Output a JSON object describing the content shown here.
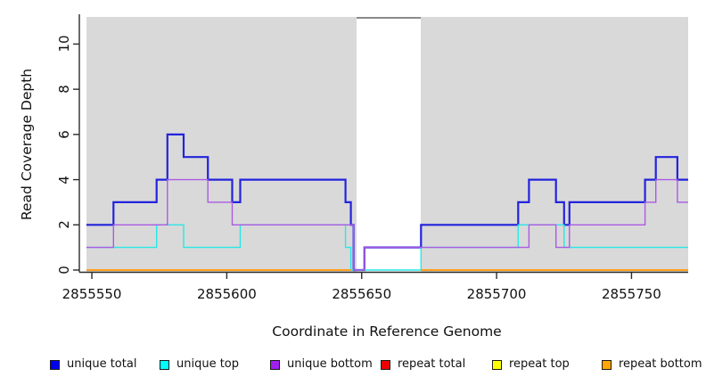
{
  "chart_data": {
    "type": "line",
    "subtype": "step",
    "title": "",
    "xlabel": "Coordinate in Reference Genome",
    "ylabel": "Read Coverage Depth",
    "xlim": [
      2855548,
      2855771
    ],
    "ylim": [
      0,
      11.2
    ],
    "x_ticks": [
      2855550,
      2855600,
      2855650,
      2855700,
      2855750
    ],
    "y_ticks": [
      0,
      2,
      4,
      6,
      8,
      10
    ],
    "grid": false,
    "plot_background": "#d9d9d9",
    "page_background": "#ffffff",
    "axis_color": "#2b2b2b",
    "highlight_region": {
      "x_start": 2855648,
      "x_end": 2855672,
      "fill": "#ffffff",
      "top_border_color": "#8a8a8a"
    },
    "series": [
      {
        "name": "unique total",
        "color": "#2323dd",
        "line_width": 2.2,
        "segments": [
          [
            [
              2855548,
              2
            ],
            [
              2855558,
              3
            ],
            [
              2855574,
              4
            ],
            [
              2855578,
              6
            ],
            [
              2855584,
              5
            ],
            [
              2855593,
              4
            ],
            [
              2855602,
              3
            ],
            [
              2855605,
              4
            ],
            [
              2855644,
              3
            ],
            [
              2855646,
              2
            ],
            [
              2855647,
              0
            ],
            [
              2855651,
              1
            ],
            [
              2855672,
              2
            ],
            [
              2855708,
              3
            ],
            [
              2855712,
              4
            ],
            [
              2855722,
              3
            ],
            [
              2855725,
              2
            ],
            [
              2855727,
              3
            ],
            [
              2855755,
              4
            ],
            [
              2855759,
              5
            ],
            [
              2855767,
              4
            ],
            [
              2855771,
              4
            ]
          ]
        ]
      },
      {
        "name": "unique top",
        "color": "#27e8e4",
        "line_width": 1.4,
        "segments": [
          [
            [
              2855548,
              1
            ],
            [
              2855574,
              2
            ],
            [
              2855584,
              1
            ],
            [
              2855605,
              2
            ],
            [
              2855644,
              1
            ],
            [
              2855646,
              0
            ],
            [
              2855672,
              1
            ],
            [
              2855708,
              2
            ],
            [
              2855725,
              1
            ],
            [
              2855771,
              1
            ]
          ]
        ]
      },
      {
        "name": "unique bottom",
        "color": "#ab5ae3",
        "line_width": 1.4,
        "segments": [
          [
            [
              2855548,
              1
            ],
            [
              2855558,
              2
            ],
            [
              2855578,
              4
            ],
            [
              2855593,
              3
            ],
            [
              2855602,
              2
            ],
            [
              2855647,
              0
            ],
            [
              2855651,
              1
            ],
            [
              2855712,
              2
            ],
            [
              2855722,
              1
            ],
            [
              2855727,
              2
            ],
            [
              2855755,
              3
            ],
            [
              2855759,
              4
            ],
            [
              2855767,
              3
            ],
            [
              2855771,
              3
            ]
          ]
        ]
      },
      {
        "name": "repeat total",
        "color": "#dd0000",
        "line_width": 1.2,
        "segments": [
          [
            [
              2855548,
              0
            ],
            [
              2855646,
              0
            ]
          ],
          [
            [
              2855672,
              0
            ],
            [
              2855771,
              0
            ]
          ]
        ]
      },
      {
        "name": "repeat top",
        "color": "#ffff00",
        "line_width": 1.2,
        "segments": [
          [
            [
              2855548,
              0
            ],
            [
              2855646,
              0
            ]
          ],
          [
            [
              2855672,
              0
            ],
            [
              2855771,
              0
            ]
          ]
        ]
      },
      {
        "name": "repeat bottom",
        "color": "#ff9f1a",
        "line_width": 2,
        "segments": [
          [
            [
              2855548,
              0
            ],
            [
              2855646,
              0
            ]
          ],
          [
            [
              2855672,
              0
            ],
            [
              2855771,
              0
            ]
          ]
        ]
      }
    ]
  },
  "legend": {
    "items": [
      {
        "label": "unique total",
        "color": "#0000ee"
      },
      {
        "label": "unique top",
        "color": "#00ffff"
      },
      {
        "label": "unique bottom",
        "color": "#a020f0"
      },
      {
        "label": "repeat total",
        "color": "#ee0000"
      },
      {
        "label": "repeat top",
        "color": "#ffff00"
      },
      {
        "label": "repeat bottom",
        "color": "#ffa500"
      }
    ]
  }
}
